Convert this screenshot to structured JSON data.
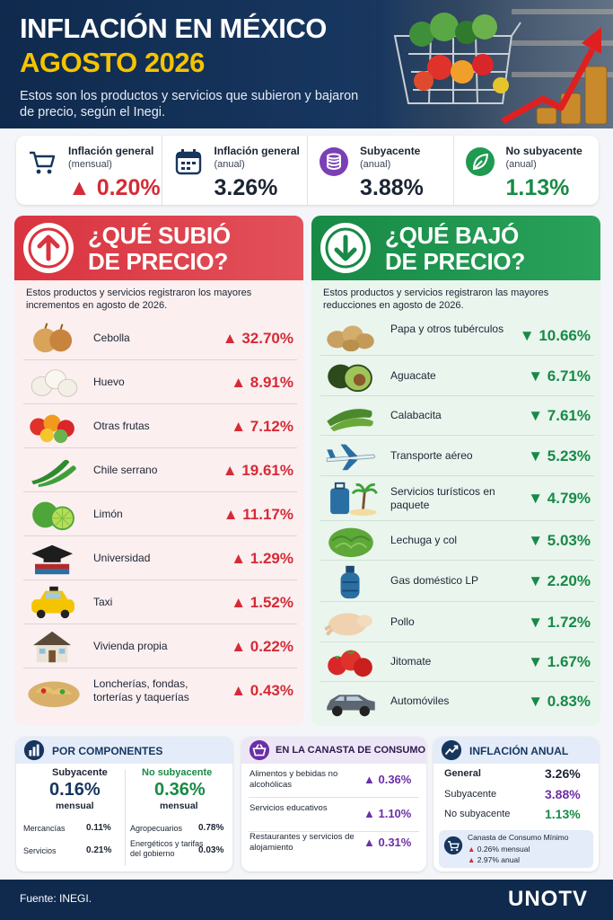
{
  "header": {
    "title_line1": "INFLACIÓN EN MÉXICO",
    "title_line2": "AGOSTO 2026",
    "subtitle": "Estos son los productos y servicios que subieron y bajaron de precio, según el Inegi."
  },
  "kpis": [
    {
      "label": "Inflación general",
      "sublabel": "(mensual)",
      "value": "▲ 0.20%",
      "icon": "shopping-cart-icon",
      "color": "#d52b36"
    },
    {
      "label": "Inflación general",
      "sublabel": "(anual)",
      "value": "3.26%",
      "icon": "calendar-icon",
      "color": "#1c2433"
    },
    {
      "label": "Subyacente",
      "sublabel": "(anual)",
      "value": "3.88%",
      "icon": "coins-icon",
      "color": "#6b2fa6"
    },
    {
      "label": "No subyacente",
      "sublabel": "(anual)",
      "value": "1.13%",
      "icon": "leaf-icon",
      "color": "#178a46"
    }
  ],
  "up": {
    "title_line1": "¿QUÉ SUBIÓ",
    "title_line2": "DE PRECIO?",
    "description": "Estos productos y servicios registraron los mayores incrementos en agosto de 2026.",
    "items": [
      {
        "name": "Cebolla",
        "pct": "▲ 32.70%",
        "icon": "onion-icon"
      },
      {
        "name": "Huevo",
        "pct": "▲ 8.91%",
        "icon": "egg-icon"
      },
      {
        "name": "Otras frutas",
        "pct": "▲ 7.12%",
        "icon": "fruits-icon"
      },
      {
        "name": "Chile serrano",
        "pct": "▲ 19.61%",
        "icon": "chili-icon"
      },
      {
        "name": "Limón",
        "pct": "▲ 11.17%",
        "icon": "lime-icon"
      },
      {
        "name": "Universidad",
        "pct": "▲ 1.29%",
        "icon": "graduation-cap-icon"
      },
      {
        "name": "Taxi",
        "pct": "▲ 1.52%",
        "icon": "taxi-icon"
      },
      {
        "name": "Vivienda propia",
        "pct": "▲ 0.22%",
        "icon": "house-icon"
      },
      {
        "name": "Loncherías, fondas, torterías y taquerías",
        "pct": "▲ 0.43%",
        "icon": "tacos-icon"
      }
    ]
  },
  "down": {
    "title_line1": "¿QUÉ BAJÓ",
    "title_line2": "DE PRECIO?",
    "description": "Estos productos y servicios registraron las mayores reducciones en agosto de 2026.",
    "items": [
      {
        "name": "Papa y otros tubérculos",
        "pct": "▼ 10.66%",
        "icon": "potato-icon"
      },
      {
        "name": "Aguacate",
        "pct": "▼ 6.71%",
        "icon": "avocado-icon"
      },
      {
        "name": "Calabacita",
        "pct": "▼ 7.61%",
        "icon": "zucchini-icon"
      },
      {
        "name": "Transporte aéreo",
        "pct": "▼ 5.23%",
        "icon": "airplane-icon"
      },
      {
        "name": "Servicios turísticos en paquete",
        "pct": "▼ 4.79%",
        "icon": "suitcase-icon"
      },
      {
        "name": "Lechuga y col",
        "pct": "▼ 5.03%",
        "icon": "lettuce-icon"
      },
      {
        "name": "Gas doméstico LP",
        "pct": "▼ 2.20%",
        "icon": "gas-tank-icon"
      },
      {
        "name": "Pollo",
        "pct": "▼ 1.72%",
        "icon": "chicken-icon"
      },
      {
        "name": "Jitomate",
        "pct": "▼ 1.67%",
        "icon": "tomato-icon"
      },
      {
        "name": "Automóviles",
        "pct": "▼ 0.83%",
        "icon": "car-icon"
      }
    ]
  },
  "componentes": {
    "title": "POR COMPONENTES",
    "sub_label": "Subyacente",
    "sub_value": "0.16%",
    "sub_unit": "mensual",
    "nosub_label": "No subyacente",
    "nosub_value": "0.36%",
    "nosub_unit": "mensual",
    "left_rows": [
      {
        "name": "Mercancías",
        "value": "0.11%"
      },
      {
        "name": "Servicios",
        "value": "0.21%"
      }
    ],
    "right_rows": [
      {
        "name": "Agropecuarios",
        "value": "0.78%"
      },
      {
        "name": "Energéticos y tarifas del gobierno",
        "value": "0.03%"
      }
    ]
  },
  "canasta": {
    "title": "EN LA CANASTA DE CONSUMO",
    "rows": [
      {
        "name": "Alimentos y bebidas no alcohólicas",
        "value": "▲ 0.36%"
      },
      {
        "name": "Servicios educativos",
        "value": "▲ 1.10%"
      },
      {
        "name": "Restaurantes y servicios de alojamiento",
        "value": "▲ 0.31%"
      }
    ]
  },
  "anual": {
    "title": "INFLACIÓN ANUAL",
    "rows": [
      {
        "name": "General",
        "value": "3.26%",
        "color": "#1c2433"
      },
      {
        "name": "Subyacente",
        "value": "3.88%",
        "color": "#6b2fa6"
      },
      {
        "name": "No subyacente",
        "value": "1.13%",
        "color": "#178a46"
      }
    ],
    "ccm_title": "Canasta de Consumo Mínimo",
    "ccm_rows": [
      "▲ 0.26% mensual",
      "▲ 2.97% anual"
    ]
  },
  "footer": {
    "source": "Fuente: INEGI.",
    "logo": "UNOTV"
  },
  "colors": {
    "red": "#d52b36",
    "green": "#178a46",
    "navy": "#0f2a4d",
    "yellow": "#f5c400",
    "purple": "#6b2fa6"
  }
}
